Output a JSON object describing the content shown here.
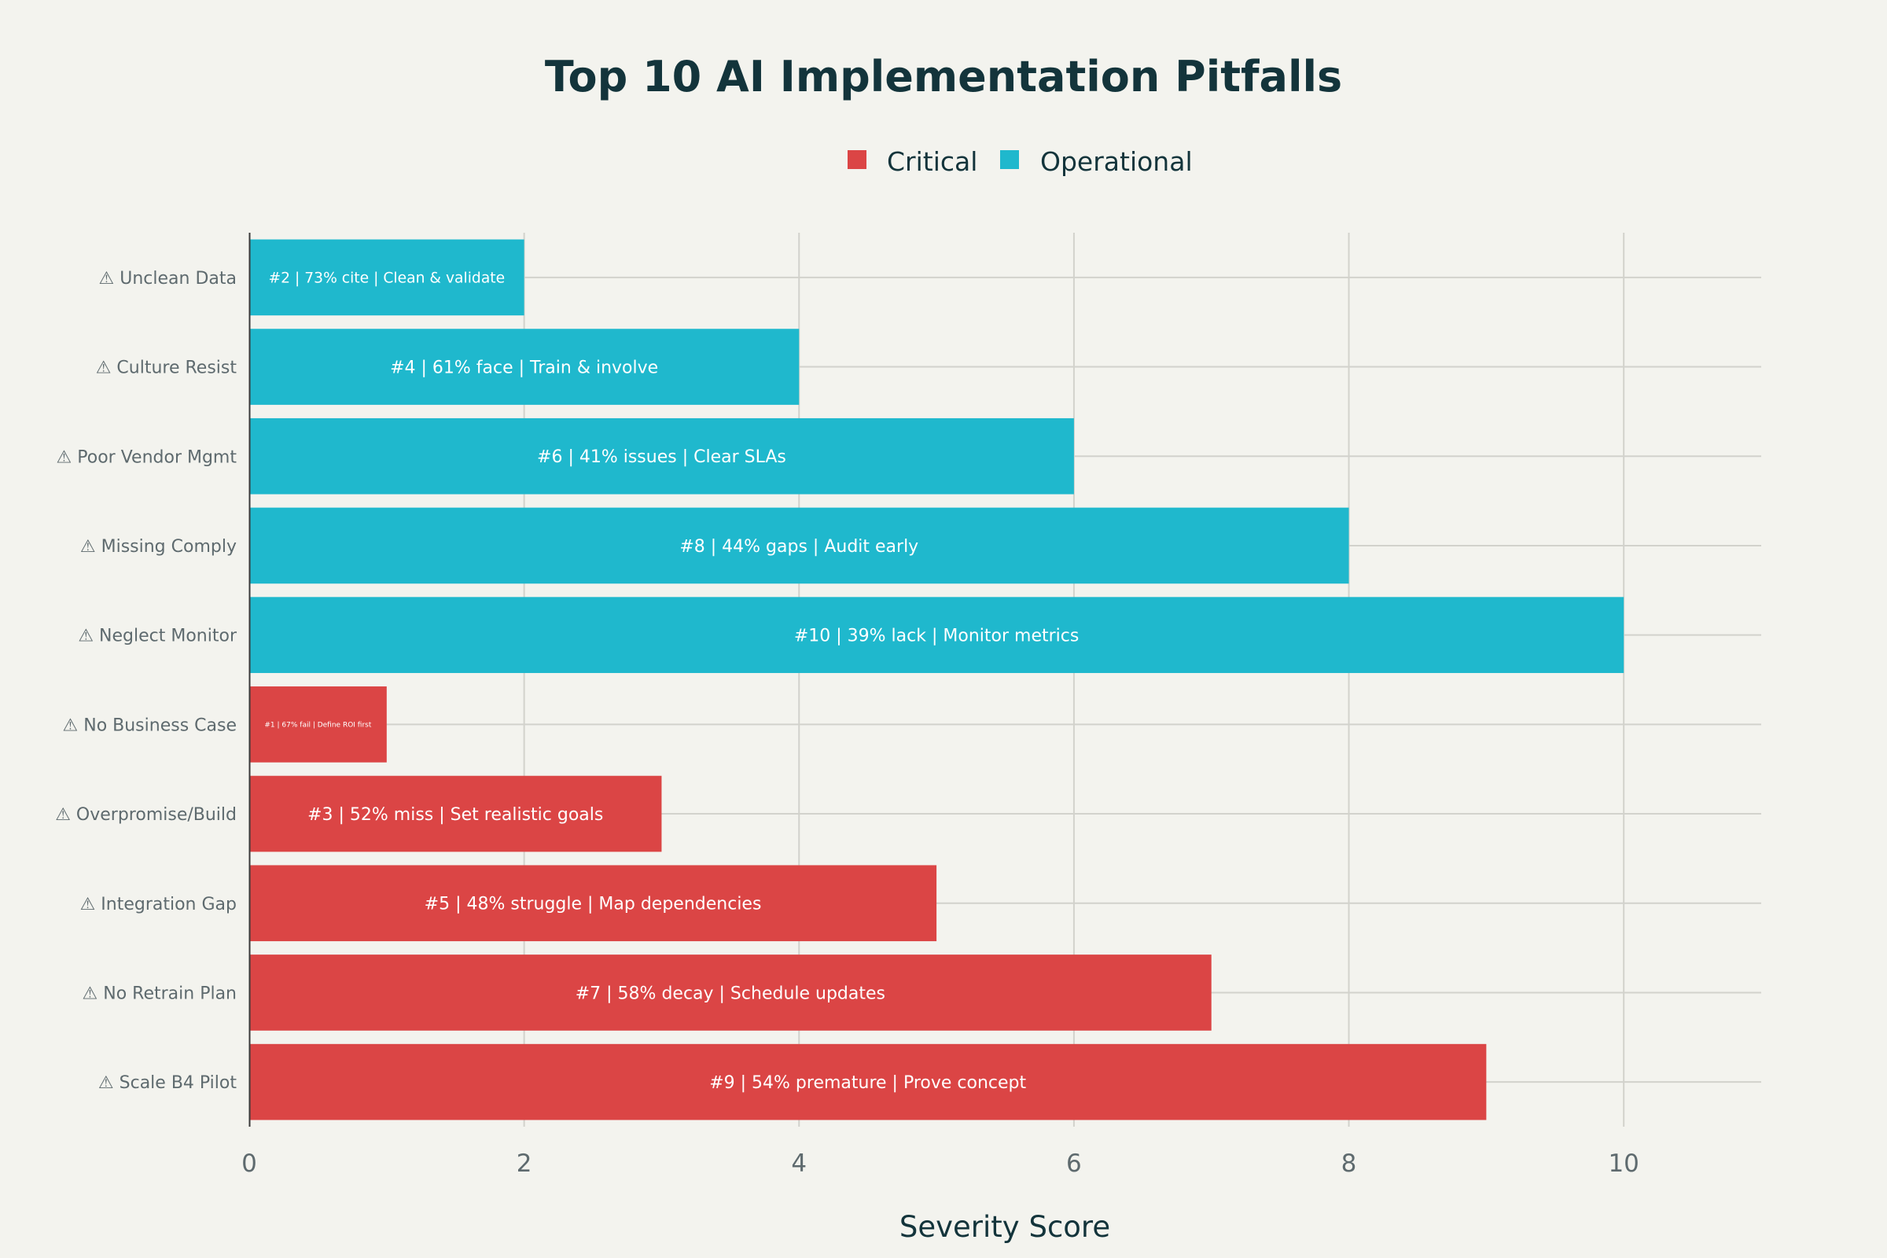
{
  "chart_data": {
    "type": "bar",
    "orientation": "horizontal",
    "title": "Top 10 AI Implementation Pitfalls",
    "xlabel": "Severity Score",
    "ylabel": "",
    "xlim": [
      0,
      11
    ],
    "xticks": [
      0,
      2,
      4,
      6,
      8,
      10
    ],
    "grid": true,
    "legend_position": "top-center",
    "colors": {
      "Critical": "#db4545",
      "Operational": "#1fb8cd",
      "background": "#f3f3ee",
      "title": "#13343b",
      "label": "#5e6a6e"
    },
    "series": [
      {
        "name": "Critical",
        "categories": [
          "⚠ No Business Case",
          "⚠ Overpromise/Build",
          "⚠ Integration Gap",
          "⚠ No Retrain Plan",
          "⚠ Scale B4 Pilot"
        ],
        "values": [
          1,
          3,
          5,
          7,
          9
        ],
        "labels": [
          "#1 | 67% fail | Define ROI first",
          "#3 | 52% miss | Set realistic goals",
          "#5 | 48% struggle | Map dependencies",
          "#7 | 58% decay | Schedule updates",
          "#9 | 54% premature | Prove concept"
        ]
      },
      {
        "name": "Operational",
        "categories": [
          "⚠ Unclean Data",
          "⚠ Culture Resist",
          "⚠ Poor Vendor Mgmt",
          "⚠ Missing Comply",
          "⚠ Neglect Monitor"
        ],
        "values": [
          2,
          4,
          6,
          8,
          10
        ],
        "labels": [
          "#2 | 73% cite | Clean & validate",
          "#4 | 61% face | Train & involve",
          "#6 | 41% issues | Clear SLAs",
          "#8 | 44% gaps | Audit early",
          "#10 | 39% lack | Monitor metrics"
        ]
      }
    ],
    "category_order_top_to_bottom": [
      "⚠ Unclean Data",
      "⚠ Culture Resist",
      "⚠ Poor Vendor Mgmt",
      "⚠ Missing Comply",
      "⚠ Neglect Monitor",
      "⚠ No Business Case",
      "⚠ Overpromise/Build",
      "⚠ Integration Gap",
      "⚠ No Retrain Plan",
      "⚠ Scale B4 Pilot"
    ]
  }
}
